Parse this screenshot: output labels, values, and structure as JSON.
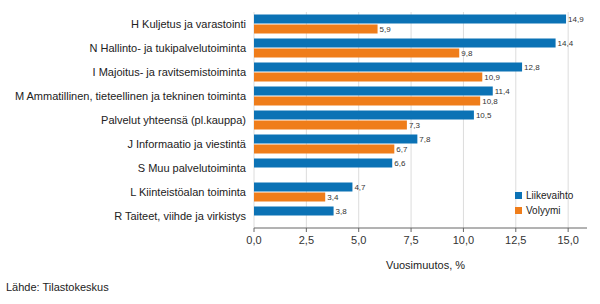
{
  "chart_data": {
    "type": "bar",
    "orientation": "horizontal",
    "categories": [
      "H Kuljetus ja varastointi",
      "N Hallinto- ja tukipalvelutoiminta",
      "I Majoitus- ja ravitsemistoiminta",
      "M Ammatillinen, tieteellinen ja tekninen toiminta",
      "Palvelut yhteensä (pl.kauppa)",
      "J Informaatio ja viestintä",
      "S Muu palvelutoiminta",
      "L Kiinteistöalan toiminta",
      "R Taiteet, viihde ja virkistys"
    ],
    "series": [
      {
        "name": "Liikevaihto",
        "color": "#0b72b5",
        "values": [
          14.9,
          14.4,
          12.8,
          11.4,
          10.5,
          7.8,
          6.6,
          4.7,
          3.8
        ],
        "value_labels": [
          "14,9",
          "14,4",
          "12,8",
          "11,4",
          "10,5",
          "7,8",
          "6,6",
          "4,7",
          "3,8"
        ]
      },
      {
        "name": "Volyymi",
        "color": "#ef7d1a",
        "values": [
          5.9,
          9.8,
          10.9,
          10.8,
          7.3,
          6.7,
          null,
          3.4,
          null
        ],
        "value_labels": [
          "5,9",
          "9,8",
          "10,9",
          "10,8",
          "7,3",
          "6,7",
          null,
          "3,4",
          null
        ]
      }
    ],
    "xlim": [
      0,
      15.9
    ],
    "xticks": [
      {
        "value": 0,
        "label": "0,0"
      },
      {
        "value": 2.5,
        "label": "2,5"
      },
      {
        "value": 5,
        "label": "5,0"
      },
      {
        "value": 7.5,
        "label": "7,5"
      },
      {
        "value": 10,
        "label": "10,0"
      },
      {
        "value": 12.5,
        "label": "12,5"
      },
      {
        "value": 15,
        "label": "15,0"
      }
    ],
    "x_label": "Vuosimuutos, %",
    "source": "Lähde: Tilastokeskus",
    "grid": true,
    "legend": "lower right",
    "data_labels": true
  }
}
